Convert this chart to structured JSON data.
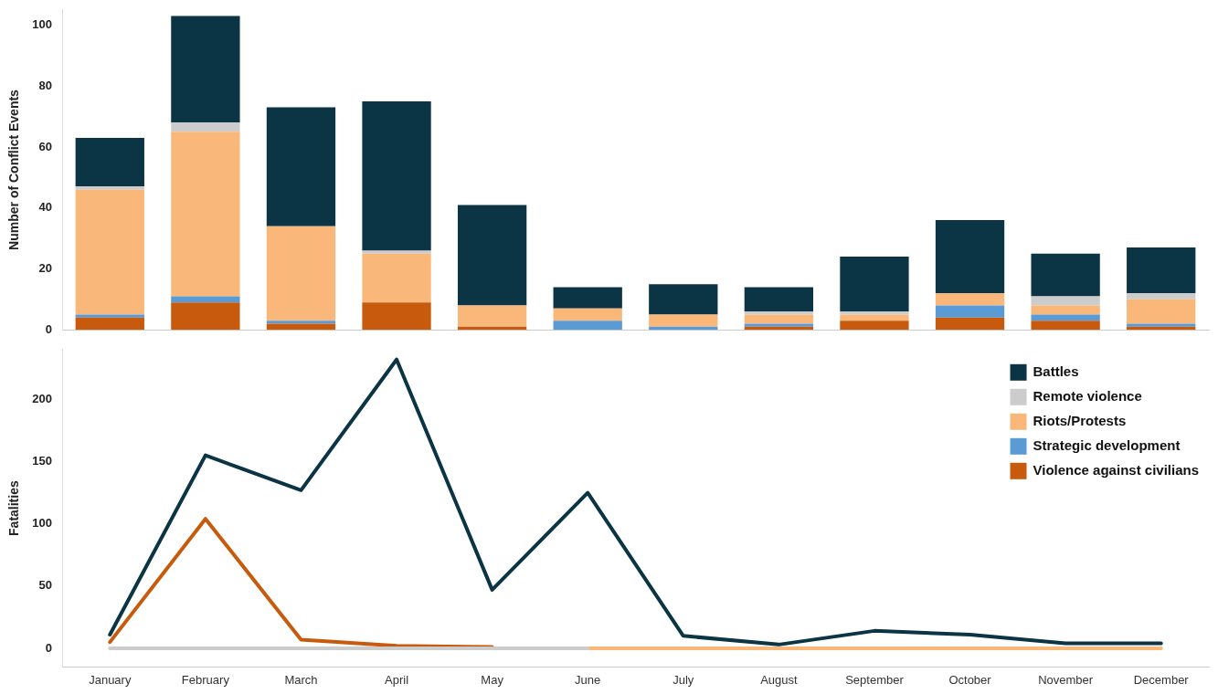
{
  "chart_data": [
    {
      "type": "bar",
      "stacked": true,
      "ylabel": "Number of Conflict Events",
      "categories": [
        null,
        null,
        null,
        null,
        null,
        null,
        null,
        null,
        null,
        null,
        null,
        null
      ],
      "tick_labels": "y",
      "ylim": [
        0,
        105
      ],
      "yticks": [
        0,
        20,
        40,
        60,
        80,
        100
      ],
      "grid": false,
      "legend": false,
      "series": [
        {
          "color": "#c85a0e",
          "values": [
            4,
            9,
            2,
            9,
            1,
            0,
            0,
            1,
            3,
            4,
            3,
            1
          ]
        },
        {
          "color": "#5b9bd5",
          "values": [
            1,
            2,
            1,
            0,
            0,
            3,
            1,
            1,
            0,
            4,
            2,
            1
          ]
        },
        {
          "color": "#f9b87a",
          "values": [
            41,
            54,
            31,
            16,
            7,
            4,
            4,
            3,
            2,
            4,
            3,
            8
          ]
        },
        {
          "color": "#cccccc",
          "values": [
            1,
            3,
            0,
            1,
            0,
            0,
            0,
            1,
            1,
            0,
            3,
            2
          ]
        },
        {
          "color": "#0b3444",
          "values": [
            16,
            35,
            39,
            49,
            33,
            7,
            10,
            8,
            18,
            24,
            14,
            15
          ]
        }
      ]
    },
    {
      "type": "line",
      "ylabel": "Fatalities",
      "categories": [
        "January",
        "February",
        "March",
        "April",
        "May",
        "June",
        "July",
        "August",
        "September",
        "October",
        "November",
        "December"
      ],
      "ylim": [
        -15,
        240
      ],
      "yticks": [
        0,
        50,
        100,
        150,
        200
      ],
      "grid": false,
      "legend": "top right",
      "marker": "none",
      "line_style": "solid",
      "series": [
        {
          "name": "Battles",
          "color": "#0b3444",
          "values": [
            11,
            155,
            127,
            232,
            47,
            125,
            10,
            3,
            14,
            11,
            4,
            4
          ]
        },
        {
          "name": "Remote violence",
          "color": "#cccccc",
          "values": [
            0,
            0,
            0,
            0,
            0,
            0,
            null,
            null,
            null,
            null,
            null,
            null
          ]
        },
        {
          "name": "Riots/Protests",
          "color": "#f9b87a",
          "values": [
            null,
            null,
            null,
            null,
            null,
            0,
            0,
            0,
            0,
            0,
            0,
            0
          ]
        },
        {
          "name": "Strategic development",
          "color": "#5b9bd5",
          "values": [
            null,
            null,
            null,
            null,
            null,
            null,
            null,
            null,
            null,
            null,
            null,
            null
          ]
        },
        {
          "name": "Violence against civilians",
          "color": "#c85a0e",
          "values": [
            5,
            104,
            7,
            2,
            1,
            null,
            null,
            null,
            null,
            null,
            null,
            null
          ]
        }
      ]
    }
  ]
}
